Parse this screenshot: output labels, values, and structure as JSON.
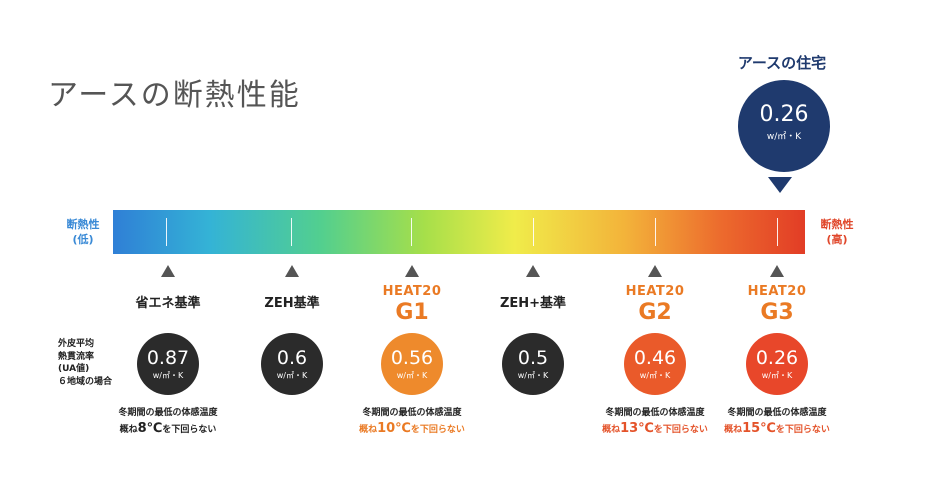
{
  "title": "アースの断熱性能",
  "brand": {
    "label": "アースの住宅",
    "value": "0.26",
    "unit": "w/㎡・K",
    "color": "#1f3a6e"
  },
  "scale": {
    "low_label_1": "断熱性",
    "low_label_2": "(低)",
    "high_label_1": "断熱性",
    "high_label_2": "(高)",
    "low_color": "#3a8ad6",
    "high_color": "#e0472b"
  },
  "ua_note": {
    "l1": "外皮平均",
    "l2": "熱貫流率",
    "l3": "(UA値)",
    "l4": "６地域の場合"
  },
  "chart_data": {
    "type": "table",
    "ylabel": "w/㎡・K",
    "categories": [
      "省エネ基準",
      "ZEH基準",
      "HEAT20 G1",
      "ZEH+基準",
      "HEAT20 G2",
      "HEAT20 G3"
    ],
    "values": [
      0.87,
      0.6,
      0.56,
      0.5,
      0.46,
      0.26
    ]
  },
  "standards": [
    {
      "name": "省エネ基準",
      "value": "0.87",
      "unit": "w/㎡・K",
      "color": "#2b2b2b",
      "temp1": "冬期間の最低の体感温度",
      "temp2a": "概ね",
      "temp2b": "8℃",
      "temp2c": "を下回らない",
      "temp_color": "#222222"
    },
    {
      "name": "ZEH基準",
      "value": "0.6",
      "unit": "w/㎡・K",
      "color": "#2b2b2b"
    },
    {
      "name_l1": "HEAT20",
      "name_l2": "G1",
      "value": "0.56",
      "unit": "w/㎡・K",
      "color": "#ee8a2c",
      "temp1": "冬期間の最低の体感温度",
      "temp2a": "概ね",
      "temp2b": "10℃",
      "temp2c": "を下回らない",
      "temp_color": "#ea7a24"
    },
    {
      "name": "ZEH+基準",
      "value": "0.5",
      "unit": "w/㎡・K",
      "color": "#2b2b2b"
    },
    {
      "name_l1": "HEAT20",
      "name_l2": "G2",
      "value": "0.46",
      "unit": "w/㎡・K",
      "color": "#ea5a2a",
      "temp1": "冬期間の最低の体感温度",
      "temp2a": "概ね",
      "temp2b": "13℃",
      "temp2c": "を下回らない",
      "temp_color": "#e4532a"
    },
    {
      "name_l1": "HEAT20",
      "name_l2": "G3",
      "value": "0.26",
      "unit": "w/㎡・K",
      "color": "#e8472a",
      "temp1": "冬期間の最低の体感温度",
      "temp2a": "概ね",
      "temp2b": "15℃",
      "temp2c": "を下回らない",
      "temp_color": "#e4532a"
    }
  ]
}
